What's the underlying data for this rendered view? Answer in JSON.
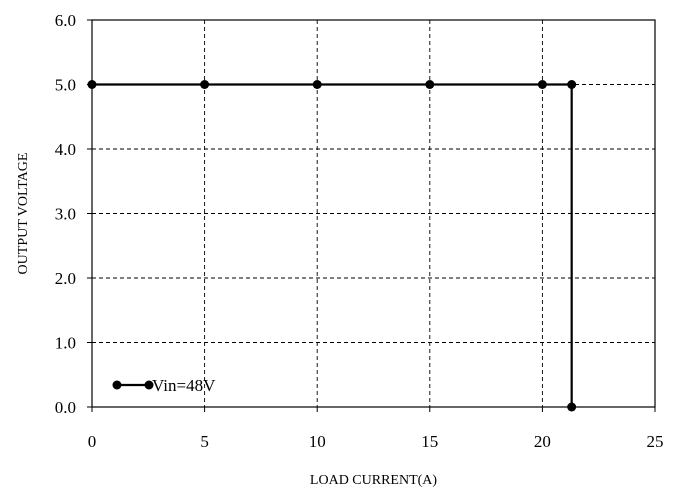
{
  "chart_data": {
    "type": "line",
    "title": "",
    "xlabel": "LOAD CURRENT(A)",
    "ylabel": "OUTPUT VOLTAGE",
    "xlim": [
      0,
      25
    ],
    "ylim": [
      0,
      6
    ],
    "x_ticks": [
      0,
      5,
      10,
      15,
      20,
      25
    ],
    "x_tick_labels": [
      "0",
      "5",
      "10",
      "15",
      "20",
      "25"
    ],
    "y_ticks": [
      0,
      1,
      2,
      3,
      4,
      5,
      6
    ],
    "y_tick_labels": [
      "0.0",
      "1.0",
      "2.0",
      "3.0",
      "4.0",
      "5.0",
      "6.0"
    ],
    "grid": true,
    "grid_style": "dashed",
    "legend_position": "bottom-left",
    "colors": {
      "series": "#000000",
      "grid": "#000000",
      "axis": "#000000"
    },
    "series": [
      {
        "name": "Vin=48V",
        "x": [
          0,
          5,
          10,
          15,
          20,
          21.3,
          21.3
        ],
        "y": [
          5.0,
          5.0,
          5.0,
          5.0,
          5.0,
          5.0,
          0.0
        ]
      }
    ]
  }
}
